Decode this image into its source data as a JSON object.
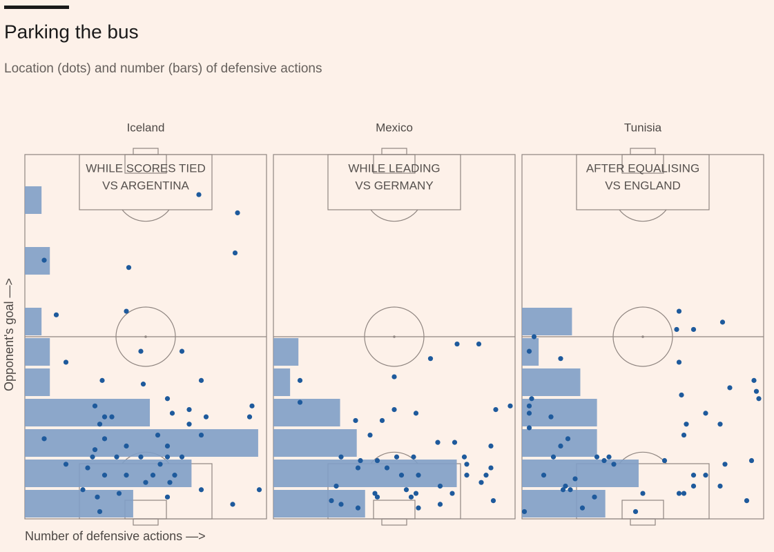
{
  "header": {
    "title": "Parking the bus",
    "subtitle": "Location (dots) and number (bars) of defensive actions"
  },
  "axis_labels": {
    "x": "Number of defensive actions —>",
    "y": "Opponent's goal —>"
  },
  "chart_data": [
    {
      "type": "pitch",
      "title": "Iceland",
      "annotation": [
        "WHILE SCORES TIED",
        "VS ARGENTINA"
      ],
      "bars": {
        "values": [
          0,
          2,
          0,
          3,
          0,
          2,
          3,
          3,
          15,
          28,
          20,
          13
        ],
        "color": "#7f9fc7",
        "xlim": [
          0,
          29
        ]
      },
      "points": {
        "color": "#1e5a9c",
        "x": [
          72,
          88,
          87,
          8,
          43,
          13,
          42,
          48,
          65,
          17,
          32,
          49,
          73,
          29,
          59,
          33,
          36,
          31,
          61,
          68,
          75,
          94,
          93,
          68,
          8,
          33,
          55,
          29,
          42,
          59,
          73,
          28,
          38,
          48,
          59,
          65,
          17,
          26,
          42,
          53,
          62,
          56,
          33,
          50,
          60,
          73,
          24,
          39,
          30,
          59,
          97,
          86,
          31
        ],
        "y": [
          89,
          84,
          73,
          71,
          69,
          56,
          57,
          46,
          46,
          43,
          38,
          37,
          38,
          31,
          33,
          28,
          28,
          26,
          29,
          30,
          28,
          31,
          28,
          26,
          22,
          22,
          23,
          19,
          20,
          20,
          23,
          17,
          17,
          17,
          17,
          17,
          15,
          14,
          12,
          12,
          12,
          15,
          12,
          10,
          10,
          8,
          8,
          7,
          6,
          6,
          8,
          4,
          2
        ],
        "xlim": [
          0,
          100
        ],
        "ylim": [
          0,
          100
        ]
      }
    },
    {
      "type": "pitch",
      "title": "Mexico",
      "annotation": [
        "WHILE LEADING",
        "VS GERMANY"
      ],
      "bars": {
        "values": [
          0,
          0,
          0,
          0,
          0,
          0,
          3,
          2,
          8,
          10,
          22,
          11
        ],
        "color": "#7f9fc7",
        "xlim": [
          0,
          29
        ]
      },
      "points": {
        "color": "#1e5a9c",
        "x": [
          85,
          76,
          65,
          50,
          11,
          11,
          34,
          45,
          50,
          59,
          92,
          98,
          40,
          68,
          75,
          90,
          28,
          36,
          43,
          51,
          58,
          35,
          47,
          60,
          53,
          79,
          80,
          80,
          90,
          88,
          86,
          26,
          42,
          55,
          59,
          57,
          69,
          74,
          91,
          24,
          28,
          35,
          43,
          60,
          69
        ],
        "y": [
          48,
          48,
          44,
          39,
          38,
          32,
          27,
          27,
          30,
          29,
          30,
          31,
          23,
          21,
          21,
          20,
          17,
          16,
          16,
          17,
          17,
          14,
          14,
          12,
          12,
          17,
          15,
          12,
          14,
          12,
          10,
          9,
          7,
          8,
          7,
          6,
          9,
          7,
          5,
          5,
          4,
          3,
          6,
          3,
          4
        ],
        "xlim": [
          0,
          100
        ],
        "ylim": [
          0,
          100
        ]
      }
    },
    {
      "type": "pitch",
      "title": "Tunisia",
      "annotation": [
        "AFTER EQUALISING",
        "VS ENGLAND"
      ],
      "bars": {
        "values": [
          0,
          0,
          0,
          0,
          0,
          6,
          2,
          7,
          9,
          9,
          14,
          10
        ],
        "color": "#7f9fc7",
        "xlim": [
          0,
          29
        ]
      },
      "points": {
        "color": "#1e5a9c",
        "x": [
          65,
          64,
          71,
          83,
          5,
          3,
          16,
          65,
          96,
          97,
          98,
          86,
          66,
          4,
          3,
          3,
          12,
          76,
          68,
          82,
          3,
          67,
          19,
          16,
          13,
          31,
          34,
          36,
          38,
          59,
          95,
          84,
          9,
          22,
          18,
          20,
          17,
          25,
          76,
          71,
          71,
          67,
          82,
          50,
          30,
          47,
          93,
          1,
          65
        ],
        "y": [
          57,
          52,
          52,
          54,
          50,
          46,
          44,
          43,
          38,
          35,
          33,
          36,
          34,
          33,
          31,
          29,
          28,
          29,
          26,
          26,
          25,
          23,
          22,
          20,
          17,
          17,
          16,
          17,
          15,
          16,
          16,
          15,
          12,
          11,
          9,
          8,
          8,
          3,
          12,
          12,
          9,
          7,
          9,
          7,
          6,
          2,
          5,
          2,
          7
        ],
        "xlim": [
          0,
          100
        ],
        "ylim": [
          0,
          100
        ]
      }
    }
  ]
}
